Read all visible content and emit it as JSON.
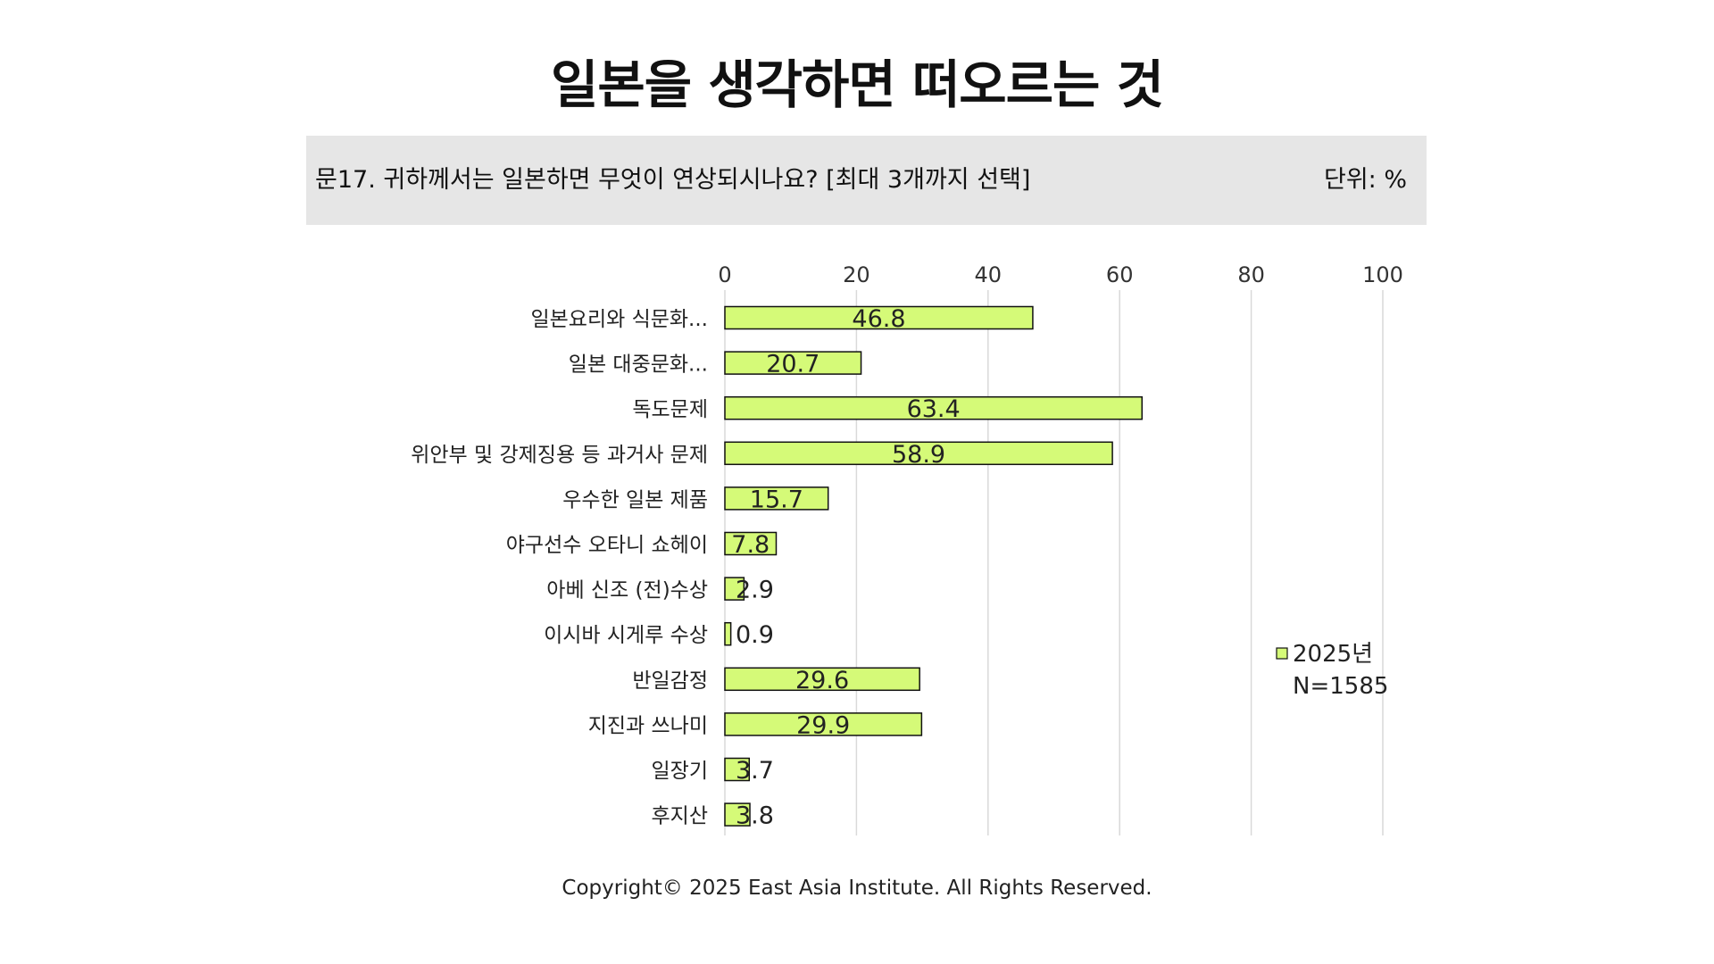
{
  "page": {
    "title": "일본을 생각하면 떠오르는 것",
    "question": "문17. 귀하께서는 일본하면 무엇이 연상되시나요? [최대 3개까지 선택]",
    "unit": "단위: %",
    "copyright": "Copyright© 2025 East Asia Institute. All Rights Reserved."
  },
  "chart_data": {
    "type": "bar",
    "orientation": "horizontal",
    "categories": [
      "일본요리와 식문화...",
      "일본 대중문화...",
      "독도문제",
      "위안부 및 강제징용 등 과거사 문제",
      "우수한 일본 제품",
      "야구선수 오타니 쇼헤이",
      "아베 신조 (전)수상",
      "이시바 시게루 수상",
      "반일감정",
      "지진과 쓰나미",
      "일장기",
      "후지산"
    ],
    "series": [
      {
        "name": "2025년",
        "values": [
          46.8,
          20.7,
          63.4,
          58.9,
          15.7,
          7.8,
          2.9,
          0.9,
          29.6,
          29.9,
          3.7,
          3.8
        ],
        "color": "#d5fa78"
      }
    ],
    "data_labels": [
      "46.8",
      "20.7",
      "63.4",
      "58.9",
      "15.7",
      "7.8",
      "2.9",
      "0.9",
      "29.6",
      "29.9",
      "3.7",
      "3.8"
    ],
    "xlim": [
      0,
      100
    ],
    "xticks": [
      0,
      20,
      40,
      60,
      80,
      100
    ],
    "xtick_labels": [
      "0",
      "20",
      "40",
      "60",
      "80",
      "100"
    ],
    "x_axis_position": "top",
    "grid": true,
    "legend_position": "right",
    "legend_note": "N=1585"
  }
}
